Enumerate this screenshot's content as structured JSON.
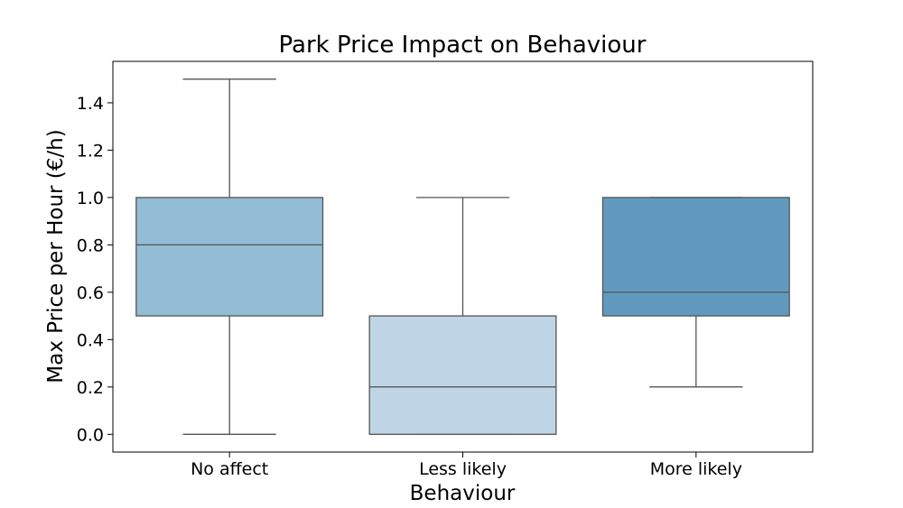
{
  "chart_data": {
    "type": "box",
    "title": "Park Price Impact on Behaviour",
    "xlabel": "Behaviour",
    "ylabel": "Max Price per Hour (€/h)",
    "ylim": [
      -0.075,
      1.575
    ],
    "yticks": [
      0.0,
      0.2,
      0.4,
      0.6,
      0.8,
      1.0,
      1.2,
      1.4
    ],
    "ytick_labels": [
      "0.0",
      "0.2",
      "0.4",
      "0.6",
      "0.8",
      "1.0",
      "1.2",
      "1.4"
    ],
    "categories": [
      "No affect",
      "Less likely",
      "More likely"
    ],
    "boxes": [
      {
        "category": "No affect",
        "whisker_low": 0.0,
        "q1": 0.5,
        "median": 0.8,
        "q3": 1.0,
        "whisker_high": 1.5,
        "color": "#93bcd5"
      },
      {
        "category": "Less likely",
        "whisker_low": 0.0,
        "q1": 0.0,
        "median": 0.2,
        "q3": 0.5,
        "whisker_high": 1.0,
        "color": "#bfd5e6"
      },
      {
        "category": "More likely",
        "whisker_low": 0.2,
        "q1": 0.5,
        "median": 0.6,
        "q3": 1.0,
        "whisker_high": 1.0,
        "color": "#629abf"
      }
    ],
    "grid": false,
    "line_color": "#555555"
  }
}
